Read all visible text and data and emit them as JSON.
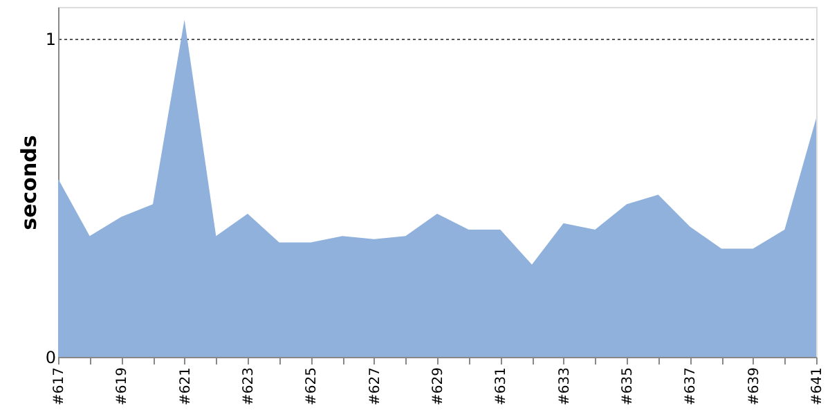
{
  "chart_data": {
    "type": "area",
    "ylabel": "seconds",
    "categories": [
      "#617",
      null,
      "#619",
      null,
      "#621",
      null,
      "#623",
      null,
      "#625",
      null,
      "#627",
      null,
      "#629",
      null,
      "#631",
      null,
      "#633",
      null,
      "#635",
      null,
      "#637",
      null,
      "#639",
      null,
      "#641"
    ],
    "series": [
      {
        "color": "#8fb1db",
        "values": [
          0.56,
          0.38,
          0.44,
          0.48,
          1.06,
          0.38,
          0.45,
          0.36,
          0.36,
          0.38,
          0.37,
          0.38,
          0.45,
          0.4,
          0.4,
          0.29,
          0.42,
          0.4,
          0.48,
          0.51,
          0.41,
          0.34,
          0.34,
          0.4,
          0.75
        ]
      }
    ],
    "ylim": [
      0,
      1.1
    ],
    "yticks": [
      0,
      1
    ],
    "grid": "y"
  }
}
